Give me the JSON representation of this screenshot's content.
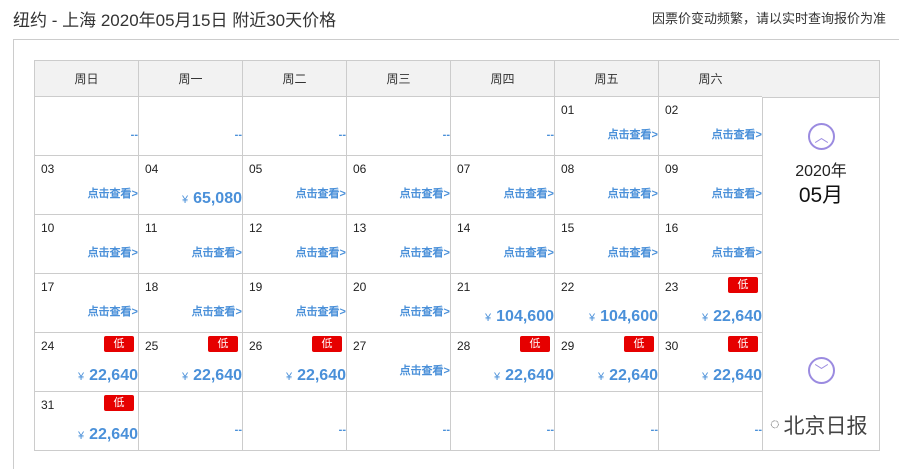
{
  "title": "纽约 - 上海 2020年05月15日  附近30天价格",
  "notice": "因票价变动频繁，请以实时查询报价为准",
  "weekdays": [
    "周日",
    "周一",
    "周二",
    "周三",
    "周四",
    "周五",
    "周六"
  ],
  "year_label": "2020年",
  "month_label": "05月",
  "view_label": "点击查看>",
  "empty_label": "--",
  "low_label": "低",
  "currency": "¥",
  "watermark": "北京日报",
  "colors": {
    "price": "#4a90d9",
    "low_badge": "#e60000",
    "arrow": "#9b8be0"
  },
  "cells": [
    {
      "day": "",
      "type": "empty"
    },
    {
      "day": "",
      "type": "empty"
    },
    {
      "day": "",
      "type": "empty"
    },
    {
      "day": "",
      "type": "empty"
    },
    {
      "day": "",
      "type": "empty"
    },
    {
      "day": "01",
      "type": "view"
    },
    {
      "day": "02",
      "type": "view"
    },
    {
      "day": "03",
      "type": "view"
    },
    {
      "day": "04",
      "type": "price",
      "price": "65,080"
    },
    {
      "day": "05",
      "type": "view"
    },
    {
      "day": "06",
      "type": "view"
    },
    {
      "day": "07",
      "type": "view"
    },
    {
      "day": "08",
      "type": "view"
    },
    {
      "day": "09",
      "type": "view"
    },
    {
      "day": "10",
      "type": "view"
    },
    {
      "day": "11",
      "type": "view"
    },
    {
      "day": "12",
      "type": "view"
    },
    {
      "day": "13",
      "type": "view"
    },
    {
      "day": "14",
      "type": "view"
    },
    {
      "day": "15",
      "type": "view"
    },
    {
      "day": "16",
      "type": "view"
    },
    {
      "day": "17",
      "type": "view"
    },
    {
      "day": "18",
      "type": "view"
    },
    {
      "day": "19",
      "type": "view"
    },
    {
      "day": "20",
      "type": "view"
    },
    {
      "day": "21",
      "type": "price",
      "price": "104,600"
    },
    {
      "day": "22",
      "type": "price",
      "price": "104,600"
    },
    {
      "day": "23",
      "type": "price",
      "price": "22,640",
      "low": true
    },
    {
      "day": "24",
      "type": "price",
      "price": "22,640",
      "low": true
    },
    {
      "day": "25",
      "type": "price",
      "price": "22,640",
      "low": true
    },
    {
      "day": "26",
      "type": "price",
      "price": "22,640",
      "low": true
    },
    {
      "day": "27",
      "type": "view"
    },
    {
      "day": "28",
      "type": "price",
      "price": "22,640",
      "low": true
    },
    {
      "day": "29",
      "type": "price",
      "price": "22,640",
      "low": true
    },
    {
      "day": "30",
      "type": "price",
      "price": "22,640",
      "low": true
    },
    {
      "day": "31",
      "type": "price",
      "price": "22,640",
      "low": true
    },
    {
      "day": "",
      "type": "empty"
    },
    {
      "day": "",
      "type": "empty"
    },
    {
      "day": "",
      "type": "empty"
    },
    {
      "day": "",
      "type": "empty"
    },
    {
      "day": "",
      "type": "empty"
    },
    {
      "day": "",
      "type": "empty"
    }
  ]
}
